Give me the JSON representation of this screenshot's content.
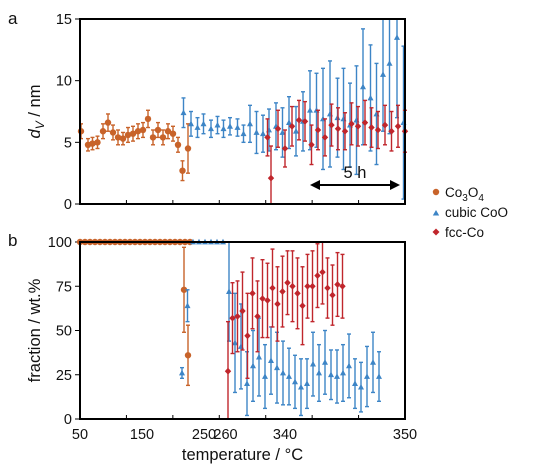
{
  "colors": {
    "Co3O4": "#C8632A",
    "cubic CoO": "#3D85C6",
    "fcc-Co": "#C0262C"
  },
  "chart_data": [
    {
      "panel": "a",
      "type": "scatter",
      "ylabel": "d_V / nm",
      "ylim": [
        0,
        15
      ],
      "yticks": [
        0,
        5,
        10,
        15
      ],
      "xlim": [
        0,
        65
      ],
      "annotation": "5 h",
      "annotation_range": [
        46,
        64
      ],
      "series": [
        {
          "name": "Co3O4",
          "x": [
            0.2,
            1.6,
            2.5,
            3.5,
            4.6,
            5.6,
            6.6,
            7.6,
            8.6,
            9.6,
            10.6,
            11.6,
            12.6,
            13.6,
            14.6,
            15.6,
            16.6,
            17.6,
            18.6,
            19.6,
            20.5,
            21.6
          ],
          "y": [
            5.9,
            4.8,
            4.9,
            5.0,
            5.9,
            6.6,
            5.8,
            5.4,
            5.3,
            5.6,
            5.7,
            5.9,
            6.0,
            6.9,
            5.4,
            6.0,
            5.4,
            5.9,
            5.7,
            4.8,
            2.7,
            4.5
          ],
          "err": [
            0.6,
            0.5,
            0.5,
            0.5,
            0.6,
            0.7,
            0.6,
            0.6,
            0.5,
            0.6,
            0.6,
            0.6,
            0.6,
            0.7,
            0.6,
            0.6,
            0.6,
            0.6,
            0.6,
            0.6,
            0.8,
            2.0
          ]
        },
        {
          "name": "cubic CoO",
          "x": [
            20.7,
            22.2,
            23.5,
            24.7,
            26.2,
            27.5,
            28.7,
            30.0,
            31.5,
            32.7,
            34.0,
            35.3,
            36.6,
            37.8,
            39.2,
            40.5,
            41.8,
            43.2,
            44.6,
            46.0,
            47.3,
            48.6,
            50.0,
            51.5,
            52.7,
            54.0,
            55.3,
            56.6,
            58.1,
            59.3,
            60.6,
            61.9,
            63.4,
            64.7
          ],
          "y": [
            7.4,
            6.5,
            6.2,
            6.5,
            6.1,
            6.4,
            6.1,
            6.3,
            6.2,
            5.7,
            6.5,
            5.8,
            5.7,
            6.0,
            6.3,
            5.8,
            6.6,
            5.9,
            6.7,
            7.6,
            7.6,
            6.9,
            7.3,
            7.0,
            6.9,
            6.4,
            6.8,
            9.5,
            8.6,
            7.3,
            10.5,
            11.4,
            13.5,
            6.6
          ],
          "err": [
            1.2,
            1.0,
            0.8,
            0.8,
            0.7,
            0.7,
            0.7,
            0.7,
            0.7,
            0.7,
            1.5,
            1.7,
            1.5,
            1.7,
            1.9,
            2.0,
            2.1,
            2.0,
            2.4,
            3.2,
            3.0,
            4.1,
            4.3,
            3.2,
            4.1,
            3.4,
            4.4,
            4.7,
            4.3,
            4.1,
            4.6,
            5.7,
            6.5,
            6.2
          ]
        },
        {
          "name": "fcc-Co",
          "x": [
            37.5,
            38.2,
            39.6,
            41.0,
            42.4,
            43.8,
            45.0,
            46.3,
            47.6,
            49.0,
            50.3,
            51.6,
            53.0,
            54.3,
            55.6,
            57.0,
            58.3,
            59.6,
            61.0,
            62.3,
            63.6,
            65.0
          ],
          "y": [
            5.4,
            2.1,
            6.1,
            4.5,
            6.3,
            6.8,
            6.7,
            4.8,
            6.0,
            5.4,
            6.4,
            6.1,
            5.9,
            6.5,
            6.3,
            6.6,
            6.2,
            6.0,
            6.4,
            5.9,
            6.3,
            5.9
          ],
          "err": [
            1.5,
            2.6,
            1.5,
            1.5,
            1.6,
            1.6,
            1.6,
            1.6,
            1.6,
            1.5,
            1.7,
            1.7,
            1.5,
            1.7,
            1.6,
            1.8,
            1.6,
            1.5,
            1.6,
            1.6,
            1.7,
            1.7
          ]
        }
      ]
    },
    {
      "panel": "b",
      "type": "scatter",
      "xlabel": "temperature / °C",
      "ylabel": "fraction / wt.%",
      "ylim": [
        0,
        100
      ],
      "yticks": [
        0,
        25,
        50,
        75,
        100
      ],
      "xlim": [
        0,
        65
      ],
      "x_ticks": [
        {
          "at": 0,
          "label": "50"
        },
        {
          "at": 12.4,
          "label": "150"
        },
        {
          "at": 24.8,
          "label": "250"
        },
        {
          "at": 29.1,
          "label": "260"
        },
        {
          "at": 41.0,
          "label": "340"
        },
        {
          "at": 65.0,
          "label": "350"
        }
      ],
      "series": [
        {
          "name": "Co3O4",
          "x": [
            0,
            1,
            2,
            3,
            4,
            5,
            6,
            7,
            8,
            9,
            10,
            11,
            12,
            13,
            14,
            15,
            16,
            17,
            18,
            19,
            20,
            21,
            22,
            20.8,
            21.6
          ],
          "y": [
            100,
            100,
            100,
            100,
            100,
            100,
            100,
            100,
            100,
            100,
            100,
            100,
            100,
            100,
            100,
            100,
            100,
            100,
            100,
            100,
            100,
            100,
            100,
            73,
            36
          ],
          "err": [
            0,
            0,
            0,
            0,
            0,
            0,
            0,
            0,
            0,
            0,
            0,
            0,
            0,
            0,
            0,
            0,
            0,
            0,
            0,
            0,
            0,
            0,
            0,
            24,
            17
          ]
        },
        {
          "name": "cubic CoO",
          "x": [
            20.4,
            21.5,
            22.6,
            23.8,
            25.0,
            26.2,
            27.4,
            28.6,
            29.8,
            31.0,
            32.2,
            33.4,
            34.6,
            35.8,
            37.0,
            38.2,
            39.4,
            40.6,
            41.8,
            43.0,
            44.2,
            45.4,
            46.6,
            47.8,
            49.0,
            50.2,
            51.4,
            52.6,
            53.8,
            55.0,
            56.2,
            57.4,
            58.6,
            59.8
          ],
          "y": [
            26,
            64,
            100,
            100,
            100,
            100,
            100,
            100,
            72,
            43,
            41,
            20,
            30,
            35,
            24,
            33,
            29,
            26,
            24,
            21,
            18,
            20,
            31,
            26,
            32,
            25,
            24,
            26,
            30,
            20,
            18,
            24,
            32,
            24
          ],
          "err": [
            3,
            9,
            0,
            0,
            0,
            0,
            0,
            0,
            28,
            28,
            24,
            18,
            20,
            22,
            18,
            19,
            20,
            18,
            16,
            15,
            16,
            14,
            18,
            16,
            18,
            14,
            15,
            16,
            18,
            14,
            14,
            17,
            17,
            14
          ]
        },
        {
          "name": "fcc-Co",
          "x": [
            29.6,
            30.5,
            31.5,
            32.5,
            33.5,
            34.5,
            35.5,
            36.5,
            37.5,
            38.5,
            39.5,
            40.5,
            41.5,
            42.5,
            43.5,
            44.5,
            45.5,
            46.5,
            47.5,
            48.5,
            49.5,
            50.5,
            51.5,
            52.5
          ],
          "y": [
            27,
            57,
            58,
            61,
            47,
            71,
            58,
            68,
            67,
            74,
            65,
            72,
            77,
            75,
            71,
            64,
            75,
            75,
            81,
            83,
            74,
            70,
            76,
            75
          ],
          "err": [
            28,
            20,
            20,
            22,
            24,
            20,
            20,
            22,
            21,
            22,
            21,
            20,
            18,
            20,
            20,
            22,
            18,
            20,
            18,
            18,
            17,
            17,
            18,
            18
          ]
        }
      ]
    }
  ],
  "panel_labels": {
    "a": "a",
    "b": "b"
  },
  "legend": {
    "position": "right",
    "items": [
      {
        "name": "Co3O4",
        "base": "Co",
        "sub1": "3",
        "mid": "O",
        "sub2": "4"
      },
      {
        "name": "cubic CoO",
        "text": "cubic CoO"
      },
      {
        "name": "fcc-Co",
        "text": "fcc-Co"
      }
    ]
  }
}
